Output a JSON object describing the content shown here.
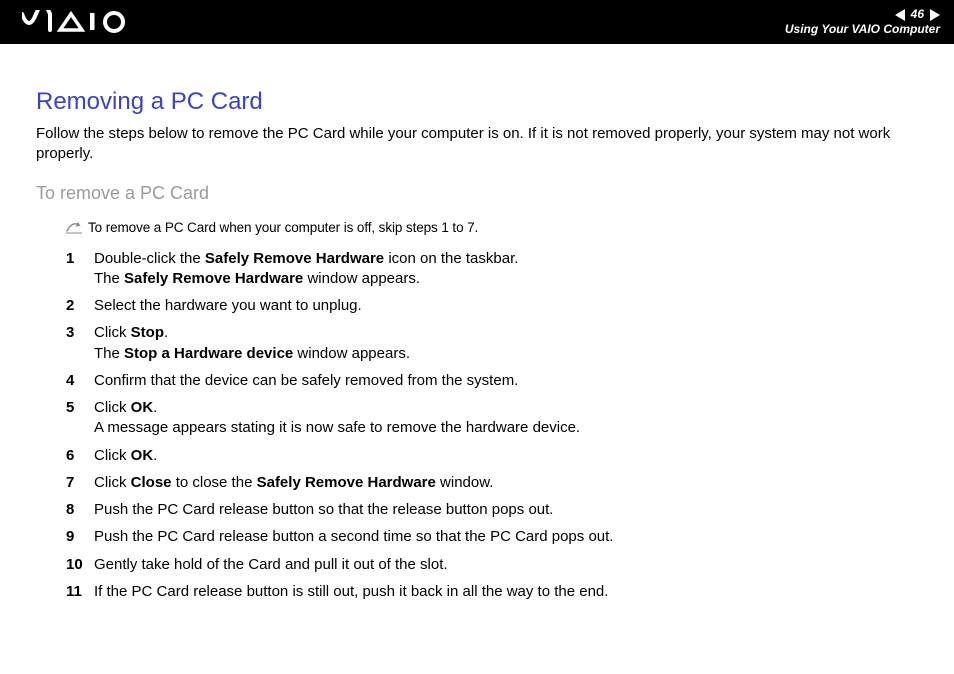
{
  "header": {
    "page_number": "46",
    "section": "Using Your VAIO Computer"
  },
  "title": "Removing a PC Card",
  "intro": "Follow the steps below to remove the PC Card while your computer is on. If it is not removed properly, your system may not work properly.",
  "subtitle": "To remove a PC Card",
  "note": "To remove a PC Card when your computer is off, skip steps 1 to 7.",
  "steps": [
    {
      "n": "1",
      "html": "Double-click the <b>Safely Remove Hardware</b> icon on the taskbar.<br>The <b>Safely Remove Hardware</b> window appears."
    },
    {
      "n": "2",
      "html": "Select the hardware you want to unplug."
    },
    {
      "n": "3",
      "html": "Click <b>Stop</b>.<br>The <b>Stop a Hardware device</b> window appears."
    },
    {
      "n": "4",
      "html": "Confirm that the device can be safely removed from the system."
    },
    {
      "n": "5",
      "html": "Click <b>OK</b>.<br>A message appears stating it is now safe to remove the hardware device."
    },
    {
      "n": "6",
      "html": "Click <b>OK</b>."
    },
    {
      "n": "7",
      "html": "Click <b>Close</b> to close the <b>Safely Remove Hardware</b> window."
    },
    {
      "n": "8",
      "html": "Push the PC Card release button so that the release button pops out."
    },
    {
      "n": "9",
      "html": "Push the PC Card release button a second time so that the PC Card pops out."
    },
    {
      "n": "10",
      "html": "Gently take hold of the Card and pull it out of the slot."
    },
    {
      "n": "11",
      "html": "If the PC Card release button is still out, push it back in all the way to the end."
    }
  ],
  "colors": {
    "title": "#3a3fda",
    "subtitle": "#9a9a9a",
    "header_bg": "#000000",
    "header_fg": "#ffffff"
  }
}
